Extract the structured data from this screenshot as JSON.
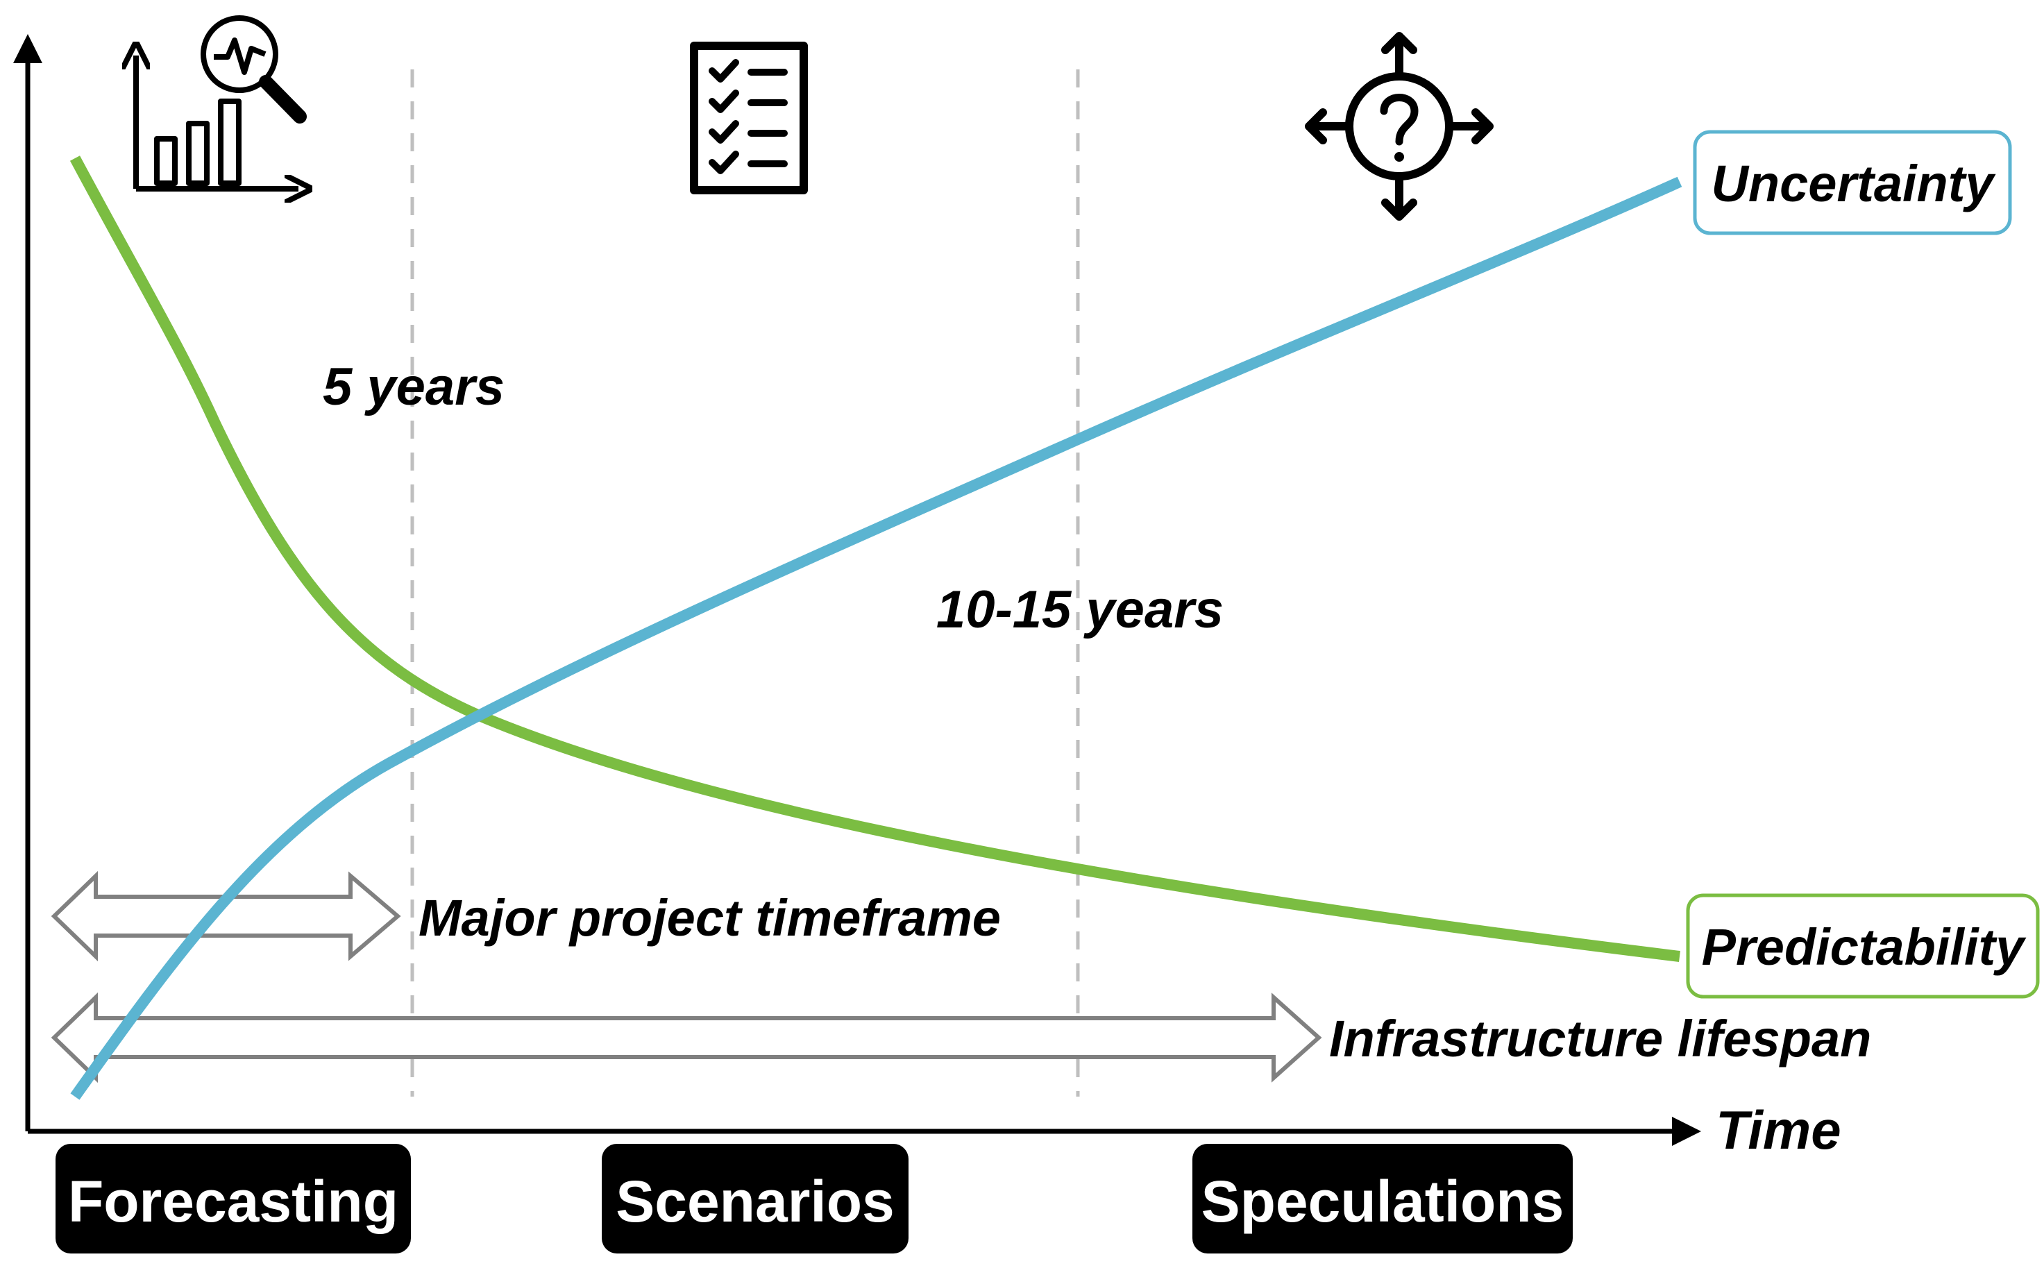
{
  "axis": {
    "x_label": "Time"
  },
  "curves": [
    {
      "name": "Uncertainty",
      "color": "#5bb4d1"
    },
    {
      "name": "Predictability",
      "color": "#7bbd42"
    }
  ],
  "period_labels": {
    "near": "5 years",
    "mid": "10-15 years"
  },
  "spans": {
    "project": "Major project timeframe",
    "infrastructure": "Infrastructure lifespan"
  },
  "phases": [
    {
      "label": "Forecasting",
      "icon": "bar-chart-analysis-icon"
    },
    {
      "label": "Scenarios",
      "icon": "checklist-icon"
    },
    {
      "label": "Speculations",
      "icon": "question-arrows-icon"
    }
  ],
  "colors": {
    "arrow_gray": "#808080",
    "dashed": "#bfbfbf",
    "phase_bg": "#000000"
  }
}
